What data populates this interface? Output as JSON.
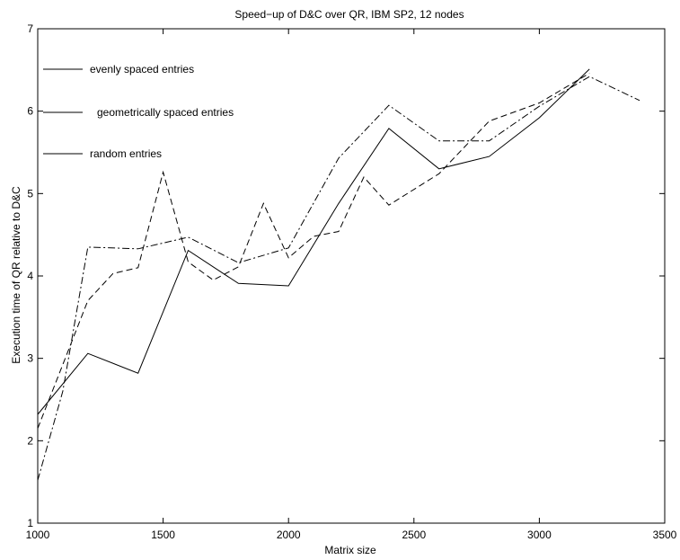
{
  "chart_data": {
    "type": "line",
    "title": "Speed−up of D&C over QR, IBM SP2, 12 nodes",
    "xlabel": "Matrix size",
    "ylabel": "Execution time of QR relative to D&C",
    "xlim": [
      1000,
      3500
    ],
    "ylim": [
      1,
      7
    ],
    "xticks": [
      "1000",
      "1500",
      "2000",
      "2500",
      "3000",
      "3500"
    ],
    "yticks": [
      "1",
      "2",
      "3",
      "4",
      "5",
      "6",
      "7"
    ],
    "grid": false,
    "legend_position": "top-left",
    "series": [
      {
        "name": "evenly spaced entries",
        "style": "solid",
        "color": "#000000",
        "x": [
          1000,
          1200,
          1400,
          1600,
          1800,
          2000,
          2200,
          2400,
          2600,
          2800,
          3000,
          3200
        ],
        "y": [
          2.32,
          3.06,
          2.82,
          4.31,
          3.91,
          3.88,
          4.88,
          5.79,
          5.3,
          5.45,
          5.92,
          6.51
        ]
      },
      {
        "name": "geometrically spaced entries",
        "style": "dashed",
        "color": "#000000",
        "x": [
          1000,
          1200,
          1300,
          1400,
          1500,
          1600,
          1700,
          1800,
          1900,
          2000,
          2100,
          2200,
          2300,
          2400,
          2600,
          2800,
          3000,
          3200
        ],
        "y": [
          2.15,
          3.7,
          4.03,
          4.1,
          5.26,
          4.17,
          3.95,
          4.11,
          4.88,
          4.22,
          4.48,
          4.54,
          5.2,
          4.86,
          5.24,
          5.88,
          6.1,
          6.46
        ]
      },
      {
        "name": "random entries",
        "style": "dashdot",
        "color": "#000000",
        "x": [
          1000,
          1100,
          1200,
          1400,
          1600,
          1800,
          2000,
          2200,
          2400,
          2600,
          2800,
          3000,
          3200,
          3400
        ],
        "y": [
          1.52,
          2.6,
          4.35,
          4.33,
          4.47,
          4.16,
          4.34,
          5.43,
          6.07,
          5.64,
          5.64,
          6.06,
          6.42,
          6.13
        ]
      }
    ]
  }
}
